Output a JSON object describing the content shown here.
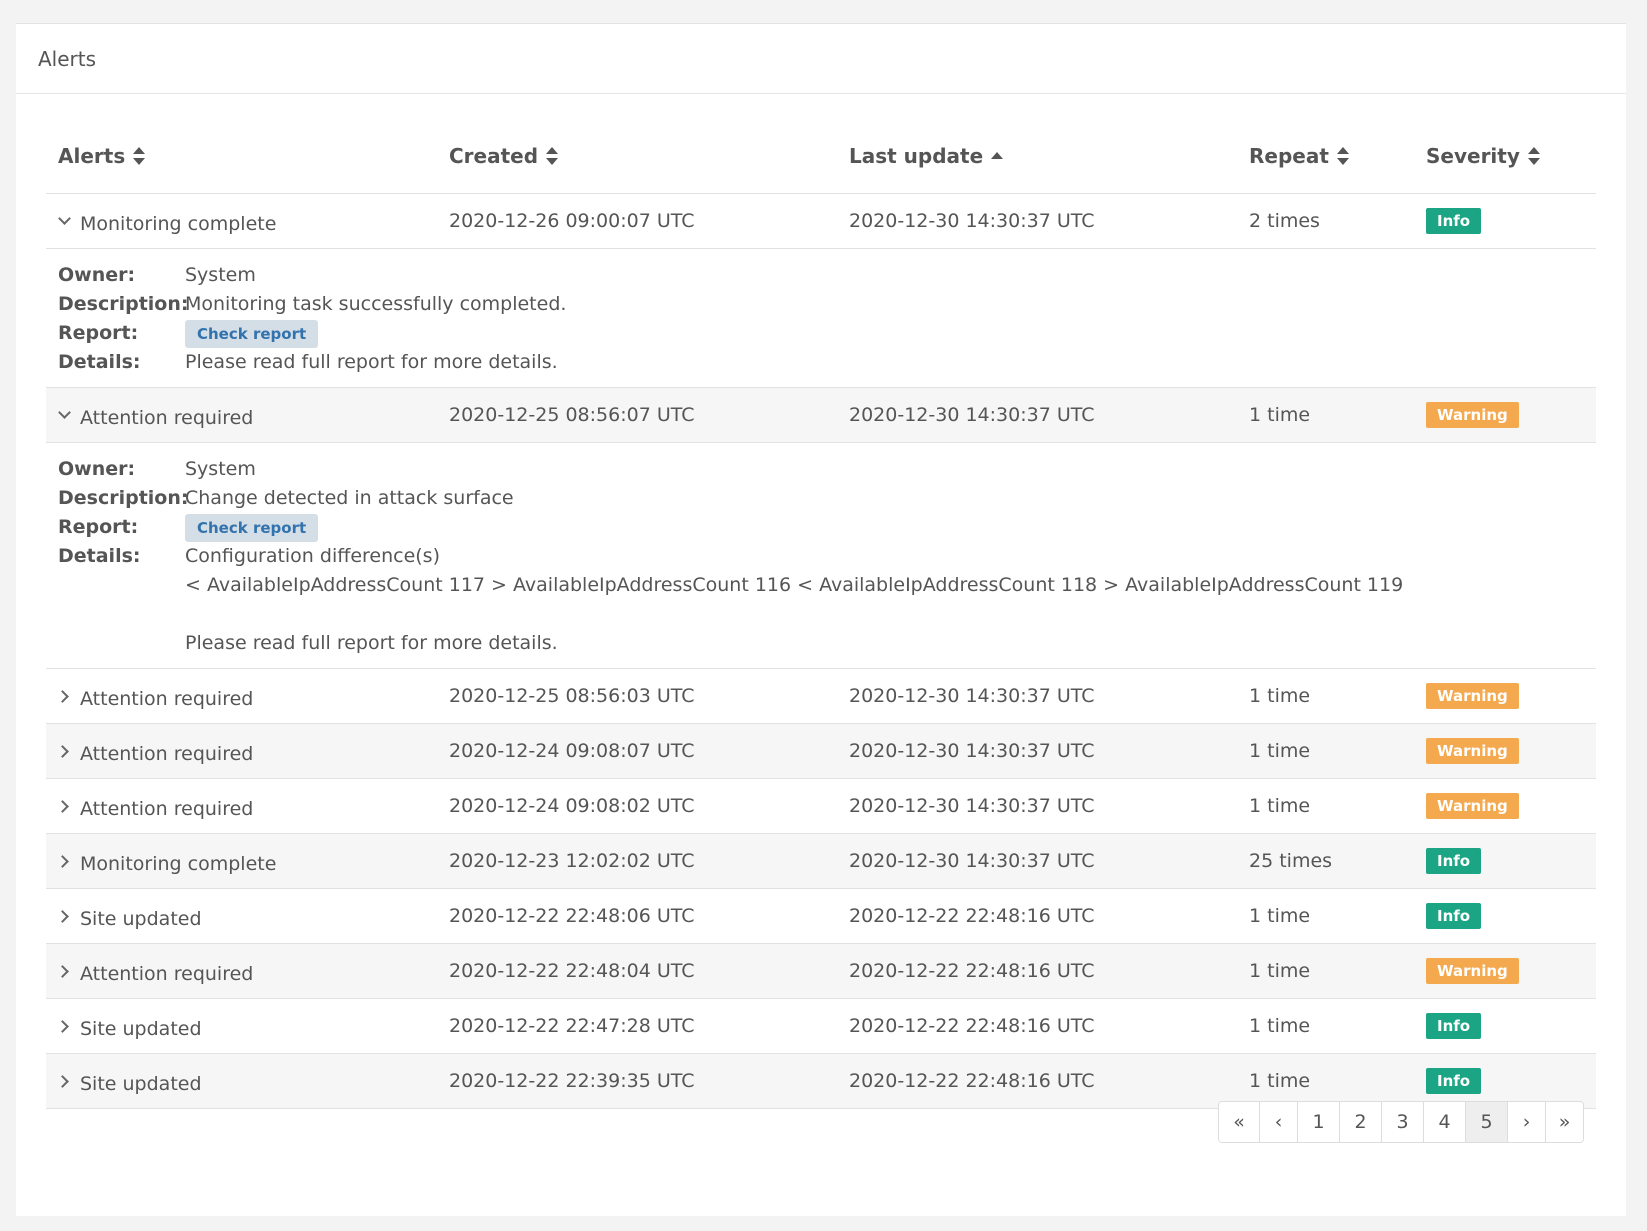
{
  "panel": {
    "title": "Alerts"
  },
  "table": {
    "columns": [
      {
        "label": "Alerts",
        "sort": "both"
      },
      {
        "label": "Created",
        "sort": "both"
      },
      {
        "label": "Last update",
        "sort": "asc"
      },
      {
        "label": "Repeat",
        "sort": "both"
      },
      {
        "label": "Severity",
        "sort": "both"
      }
    ],
    "rows": [
      {
        "title": "Monitoring complete",
        "created": "2020-12-26 09:00:07 UTC",
        "updated": "2020-12-30 14:30:37 UTC",
        "repeat": "2 times",
        "severity": "Info",
        "expanded": true,
        "details": {
          "owner_label": "Owner:",
          "owner": "System",
          "description_label": "Description:",
          "description": "Monitoring task successfully completed.",
          "report_label": "Report:",
          "report_button": "Check report",
          "details_label": "Details:",
          "details": "Please read full report for more details."
        }
      },
      {
        "title": "Attention required",
        "created": "2020-12-25 08:56:07 UTC",
        "updated": "2020-12-30 14:30:37 UTC",
        "repeat": "1 time",
        "severity": "Warning",
        "expanded": true,
        "details": {
          "owner_label": "Owner:",
          "owner": "System",
          "description_label": "Description:",
          "description": "Change detected in attack surface",
          "report_label": "Report:",
          "report_button": "Check report",
          "details_label": "Details:",
          "details": "Configuration difference(s)\n< AvailableIpAddressCount 117 > AvailableIpAddressCount 116 < AvailableIpAddressCount 118 > AvailableIpAddressCount 119\n\nPlease read full report for more details."
        }
      },
      {
        "title": "Attention required",
        "created": "2020-12-25 08:56:03 UTC",
        "updated": "2020-12-30 14:30:37 UTC",
        "repeat": "1 time",
        "severity": "Warning",
        "expanded": false
      },
      {
        "title": "Attention required",
        "created": "2020-12-24 09:08:07 UTC",
        "updated": "2020-12-30 14:30:37 UTC",
        "repeat": "1 time",
        "severity": "Warning",
        "expanded": false
      },
      {
        "title": "Attention required",
        "created": "2020-12-24 09:08:02 UTC",
        "updated": "2020-12-30 14:30:37 UTC",
        "repeat": "1 time",
        "severity": "Warning",
        "expanded": false
      },
      {
        "title": "Monitoring complete",
        "created": "2020-12-23 12:02:02 UTC",
        "updated": "2020-12-30 14:30:37 UTC",
        "repeat": "25 times",
        "severity": "Info",
        "expanded": false
      },
      {
        "title": "Site updated",
        "created": "2020-12-22 22:48:06 UTC",
        "updated": "2020-12-22 22:48:16 UTC",
        "repeat": "1 time",
        "severity": "Info",
        "expanded": false
      },
      {
        "title": "Attention required",
        "created": "2020-12-22 22:48:04 UTC",
        "updated": "2020-12-22 22:48:16 UTC",
        "repeat": "1 time",
        "severity": "Warning",
        "expanded": false
      },
      {
        "title": "Site updated",
        "created": "2020-12-22 22:47:28 UTC",
        "updated": "2020-12-22 22:48:16 UTC",
        "repeat": "1 time",
        "severity": "Info",
        "expanded": false
      },
      {
        "title": "Site updated",
        "created": "2020-12-22 22:39:35 UTC",
        "updated": "2020-12-22 22:48:16 UTC",
        "repeat": "1 time",
        "severity": "Info",
        "expanded": false
      }
    ]
  },
  "pagination": {
    "items": [
      "«",
      "‹",
      "1",
      "2",
      "3",
      "4",
      "5",
      "›",
      "»"
    ],
    "active": "5"
  },
  "colors": {
    "info": "#1ba585",
    "warning": "#f4a94e",
    "report_button_bg": "#d3dee7",
    "report_button_text": "#3272ad"
  }
}
